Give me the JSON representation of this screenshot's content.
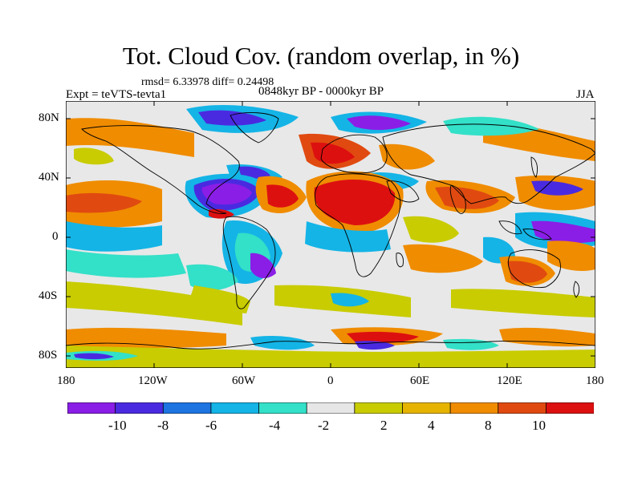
{
  "plot": {
    "title": "Tot. Cloud Cov. (random overlap, in %)",
    "stats": "rmsd= 6.33978 diff= 0.24498",
    "expt": "Expt = teVTS-tevta1",
    "period": "0848kyr BP - 0000kyr BP",
    "season": "JJA"
  },
  "axes": {
    "lat_labels": [
      "80N",
      "40N",
      "0",
      "40S",
      "80S"
    ],
    "lon_labels": [
      "180",
      "120W",
      "60W",
      "0",
      "60E",
      "120E",
      "180"
    ]
  },
  "colorbar": {
    "labels": [
      "-10",
      "-8",
      "-6",
      "-4",
      "-2",
      "2",
      "4",
      "8",
      "10"
    ],
    "colors": [
      "#8a1ee6",
      "#4a2ae0",
      "#1e74e0",
      "#14b4e6",
      "#33e0c8",
      "#e6e6e6",
      "#c8cc00",
      "#e6b400",
      "#f08c00",
      "#e04a10",
      "#dd1010"
    ]
  },
  "colors": {
    "background": "#ffffff",
    "ocean_neutral": "#e8e8e8",
    "coastline": "#000000"
  }
}
